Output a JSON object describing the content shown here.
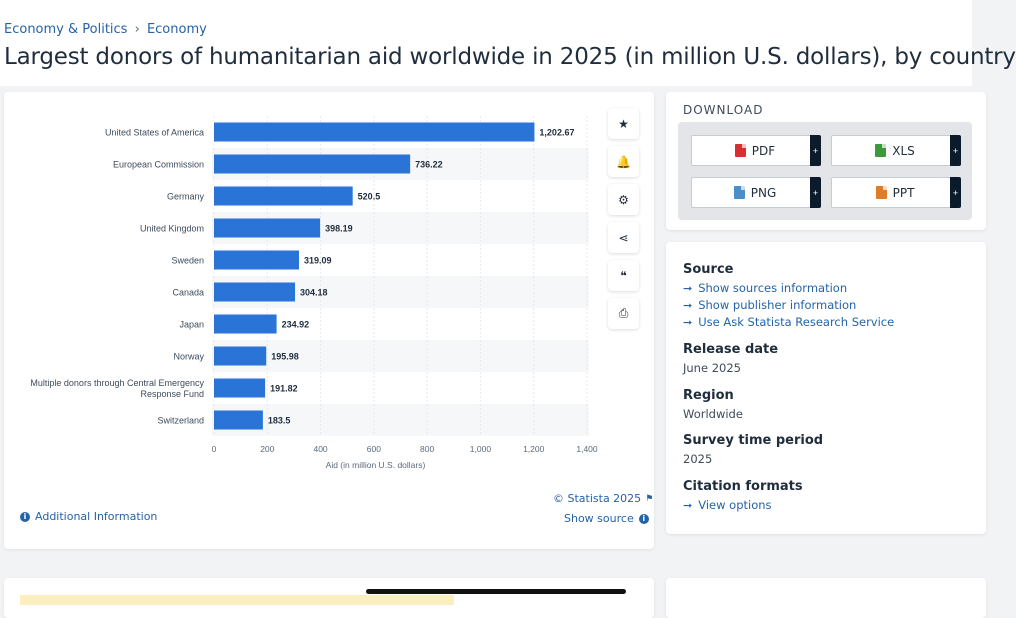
{
  "breadcrumb": {
    "items": [
      "Economy & Politics",
      "Economy"
    ],
    "separator": "›"
  },
  "page_title": "Largest donors of humanitarian aid worldwide in 2025 (in million U.S. dollars), by country",
  "chart_data": {
    "type": "bar",
    "orientation": "horizontal",
    "categories": [
      "United States of America",
      "European Commission",
      "Germany",
      "United Kingdom",
      "Sweden",
      "Canada",
      "Japan",
      "Norway",
      "Multiple donors through Central Emergency Response Fund",
      "Switzerland"
    ],
    "category_lines": [
      [
        "United States of America"
      ],
      [
        "European Commission"
      ],
      [
        "Germany"
      ],
      [
        "United Kingdom"
      ],
      [
        "Sweden"
      ],
      [
        "Canada"
      ],
      [
        "Japan"
      ],
      [
        "Norway"
      ],
      [
        "Multiple donors through Central Emergency",
        "Response Fund"
      ],
      [
        "Switzerland"
      ]
    ],
    "values": [
      1202.67,
      736.22,
      520.5,
      398.19,
      319.09,
      304.18,
      234.92,
      195.98,
      191.82,
      183.5
    ],
    "value_labels": [
      "1,202.67",
      "736.22",
      "520.5",
      "398.19",
      "319.09",
      "304.18",
      "234.92",
      "195.98",
      "191.82",
      "183.5"
    ],
    "xlabel": "Aid (in million U.S. dollars)",
    "xlim": [
      0,
      1400
    ],
    "xticks": [
      0,
      200,
      400,
      600,
      800,
      1000,
      1200,
      1400
    ],
    "xtick_labels": [
      "0",
      "200",
      "400",
      "600",
      "800",
      "1,000",
      "1,200",
      "1,400"
    ],
    "bar_color": "#2a74d8",
    "alt_row_color": "#f6f7f9",
    "grid": true
  },
  "chart_footer": {
    "additional_info": "Additional Information",
    "copyright": "© Statista 2025",
    "show_source": "Show source"
  },
  "tools": [
    {
      "name": "star-icon",
      "glyph": "★"
    },
    {
      "name": "bell-icon",
      "glyph": "🔔"
    },
    {
      "name": "gear-icon",
      "glyph": "⚙"
    },
    {
      "name": "share-icon",
      "glyph": "⋖"
    },
    {
      "name": "quote-icon",
      "glyph": "❝"
    },
    {
      "name": "print-icon",
      "glyph": "⎙"
    }
  ],
  "download": {
    "title": "DOWNLOAD",
    "buttons": [
      {
        "label": "PDF",
        "icon": "pdf-file-icon",
        "color": "#d63030"
      },
      {
        "label": "XLS",
        "icon": "xls-file-icon",
        "color": "#3d9a3a"
      },
      {
        "label": "PNG",
        "icon": "png-file-icon",
        "color": "#4b8fc9"
      },
      {
        "label": "PPT",
        "icon": "ppt-file-icon",
        "color": "#e07b28"
      }
    ],
    "plus": "+"
  },
  "meta": {
    "source_heading": "Source",
    "source_links": [
      "Show sources information",
      "Show publisher information",
      "Use Ask Statista Research Service"
    ],
    "release_heading": "Release date",
    "release_value": "June 2025",
    "region_heading": "Region",
    "region_value": "Worldwide",
    "survey_heading": "Survey time period",
    "survey_value": "2025",
    "citation_heading": "Citation formats",
    "citation_link": "View options"
  }
}
